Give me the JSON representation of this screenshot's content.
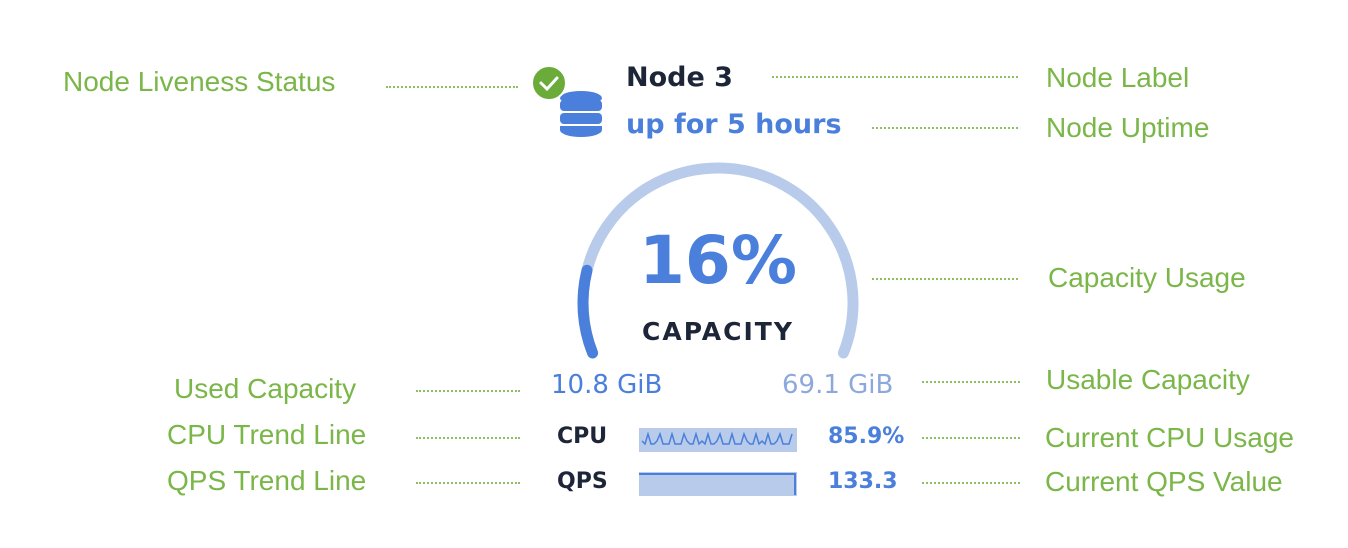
{
  "node": {
    "label": "Node 3",
    "uptime": "up for 5 hours",
    "status": "live",
    "status_icon": "check-circle-icon",
    "node_icon": "database-icon"
  },
  "capacity": {
    "percent_label": "16%",
    "percent": 16,
    "caption": "CAPACITY",
    "used": "10.8 GiB",
    "usable": "69.1 GiB"
  },
  "metrics": {
    "cpu_label": "CPU",
    "cpu_value": "85.9%",
    "qps_label": "QPS",
    "qps_value": "133.3"
  },
  "annotations": {
    "liveness": "Node Liveness Status",
    "label": "Node Label",
    "uptime": "Node Uptime",
    "capacity": "Capacity Usage",
    "used": "Used Capacity",
    "usable": "Usable Capacity",
    "cpu_trend": "CPU Trend Line",
    "cpu_current": "Current CPU Usage",
    "qps_trend": "QPS Trend Line",
    "qps_current": "Current QPS Value"
  },
  "colors": {
    "accent": "#4a7fdb",
    "track": "#b8cbea",
    "annotation": "#7ab648",
    "check": "#6aab3a"
  }
}
